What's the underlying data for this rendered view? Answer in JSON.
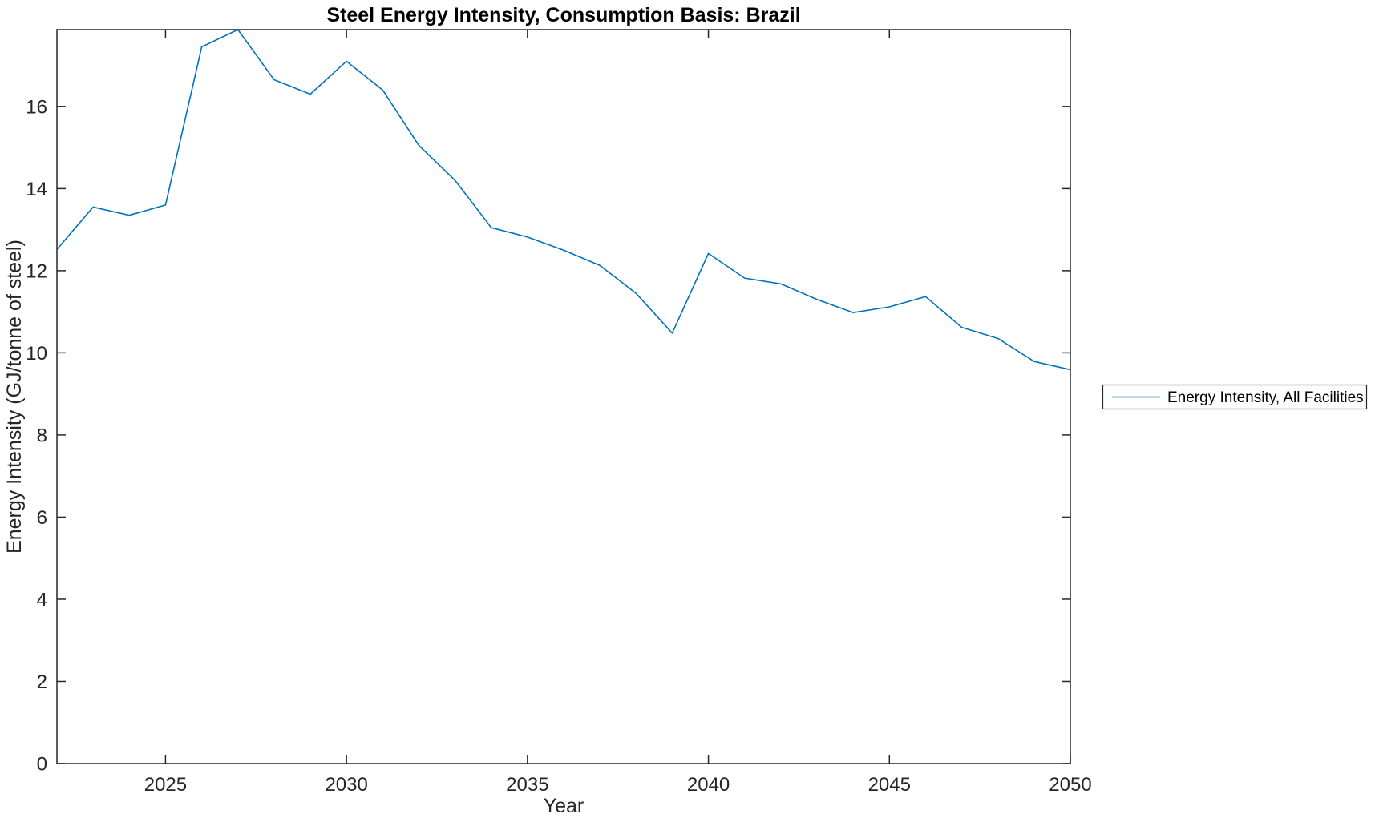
{
  "chart_data": {
    "type": "line",
    "title": "Steel Energy Intensity, Consumption Basis: Brazil",
    "xlabel": "Year",
    "ylabel": "Energy Intensity (GJ/tonne of steel)",
    "x": [
      2022,
      2023,
      2024,
      2025,
      2026,
      2027,
      2028,
      2029,
      2030,
      2031,
      2032,
      2033,
      2034,
      2035,
      2036,
      2037,
      2038,
      2039,
      2040,
      2041,
      2042,
      2043,
      2044,
      2045,
      2046,
      2047,
      2048,
      2049,
      2050
    ],
    "series": [
      {
        "name": "Energy Intensity, All Facilities",
        "color": "#0072BD",
        "values": [
          12.52,
          13.55,
          13.35,
          13.6,
          17.45,
          17.87,
          16.65,
          16.3,
          17.1,
          16.4,
          15.05,
          14.2,
          13.05,
          12.82,
          12.5,
          12.13,
          11.45,
          10.48,
          12.42,
          11.82,
          11.68,
          11.3,
          10.98,
          11.12,
          11.37,
          10.62,
          10.35,
          9.79,
          9.59
        ]
      }
    ],
    "xlim": [
      2022,
      2050
    ],
    "ylim": [
      0,
      17.87
    ],
    "xticks": [
      2025,
      2030,
      2035,
      2040,
      2045,
      2050
    ],
    "yticks": [
      0,
      2,
      4,
      6,
      8,
      10,
      12,
      14,
      16
    ],
    "grid": false,
    "box": true,
    "legend_position": "outside-right",
    "colors": {
      "line": "#0072BD",
      "axis": "#262626",
      "title": "#000000",
      "background": "#ffffff",
      "legend_border": "#262626"
    }
  }
}
